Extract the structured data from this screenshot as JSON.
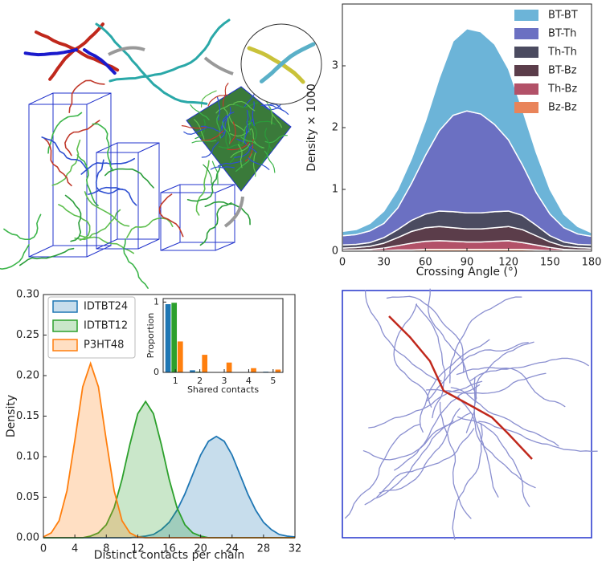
{
  "chart_data": [
    {
      "type": "stackedarea",
      "xlabel": "Crossing Angle (°)",
      "ylabel": "Density × 1000",
      "x": [
        0,
        10,
        20,
        30,
        40,
        50,
        60,
        70,
        80,
        90,
        100,
        110,
        120,
        130,
        140,
        150,
        160,
        170,
        180
      ],
      "xlim": [
        0,
        180
      ],
      "xticks": [
        0,
        30,
        60,
        90,
        120,
        150,
        180
      ],
      "ylim": [
        0,
        4
      ],
      "yticks": [
        0,
        1,
        2,
        3
      ],
      "legend": "upper right",
      "series": [
        {
          "name": "BT-BT",
          "color": "#6cb4d8",
          "values": [
            0.07,
            0.08,
            0.12,
            0.2,
            0.3,
            0.4,
            0.55,
            0.85,
            1.2,
            1.33,
            1.33,
            1.3,
            1.15,
            0.9,
            0.65,
            0.4,
            0.22,
            0.12,
            0.06
          ]
        },
        {
          "name": "BT-Th",
          "color": "#6b70c2",
          "values": [
            0.15,
            0.16,
            0.19,
            0.23,
            0.35,
            0.6,
            0.95,
            1.3,
            1.56,
            1.65,
            1.6,
            1.41,
            1.15,
            0.82,
            0.53,
            0.35,
            0.23,
            0.17,
            0.14
          ]
        },
        {
          "name": "Th-Th",
          "color": "#4b4b60",
          "values": [
            0.05,
            0.05,
            0.06,
            0.09,
            0.13,
            0.18,
            0.22,
            0.25,
            0.26,
            0.26,
            0.26,
            0.26,
            0.25,
            0.23,
            0.17,
            0.1,
            0.07,
            0.05,
            0.05
          ]
        },
        {
          "name": "BT-Bz",
          "color": "#5b3d4a",
          "values": [
            0.03,
            0.04,
            0.05,
            0.08,
            0.13,
            0.19,
            0.22,
            0.23,
            0.22,
            0.21,
            0.21,
            0.22,
            0.23,
            0.21,
            0.15,
            0.09,
            0.05,
            0.04,
            0.03
          ]
        },
        {
          "name": "Th-Bz",
          "color": "#b25168",
          "values": [
            0.02,
            0.02,
            0.02,
            0.04,
            0.07,
            0.11,
            0.13,
            0.14,
            0.13,
            0.12,
            0.12,
            0.13,
            0.14,
            0.11,
            0.08,
            0.05,
            0.02,
            0.02,
            0.02
          ]
        },
        {
          "name": "Bz-Bz",
          "color": "#e9845a",
          "values": [
            0,
            0,
            0.01,
            0.01,
            0.02,
            0.02,
            0.03,
            0.03,
            0.03,
            0.03,
            0.03,
            0.03,
            0.03,
            0.03,
            0.02,
            0.01,
            0.01,
            0,
            0
          ]
        }
      ]
    },
    {
      "type": "density",
      "xlabel": "Distinct contacts per chain",
      "ylabel": "Density",
      "x": [
        0,
        1,
        2,
        3,
        4,
        5,
        6,
        7,
        8,
        9,
        10,
        11,
        12,
        13,
        14,
        15,
        16,
        17,
        18,
        19,
        20,
        21,
        22,
        23,
        24,
        25,
        26,
        27,
        28,
        29,
        30,
        31,
        32
      ],
      "xlim": [
        0,
        32
      ],
      "xticks": [
        0,
        4,
        8,
        12,
        16,
        20,
        24,
        28,
        32
      ],
      "ylim": [
        0,
        0.3
      ],
      "yticks": [
        {
          "value": 0,
          "label": "0.00"
        },
        {
          "value": 0.05,
          "label": "0.05"
        },
        {
          "value": 0.1,
          "label": "0.10"
        },
        {
          "value": 0.15,
          "label": "0.15"
        },
        {
          "value": 0.2,
          "label": "0.20"
        },
        {
          "value": 0.25,
          "label": "0.25"
        },
        {
          "value": 0.3,
          "label": "0.30"
        }
      ],
      "legend": "upper left",
      "series": [
        {
          "name": "IDTBT24",
          "color": "#1f77b4",
          "values": [
            0,
            0,
            0,
            0,
            0,
            0,
            0,
            0,
            0,
            0,
            0,
            0,
            0.001,
            0.002,
            0.004,
            0.01,
            0.019,
            0.034,
            0.054,
            0.078,
            0.102,
            0.119,
            0.125,
            0.119,
            0.102,
            0.078,
            0.054,
            0.034,
            0.019,
            0.01,
            0.004,
            0.002,
            0.001
          ]
        },
        {
          "name": "IDTBT12",
          "color": "#2ca02c",
          "values": [
            0,
            0,
            0,
            0,
            0,
            0,
            0.002,
            0.006,
            0.016,
            0.037,
            0.072,
            0.115,
            0.153,
            0.168,
            0.153,
            0.115,
            0.072,
            0.037,
            0.016,
            0.006,
            0.002,
            0,
            0,
            0,
            0,
            0,
            0,
            0,
            0,
            0,
            0,
            0,
            0
          ]
        },
        {
          "name": "P3HT48",
          "color": "#ff7f0e",
          "values": [
            0.001,
            0.006,
            0.021,
            0.058,
            0.12,
            0.186,
            0.215,
            0.186,
            0.12,
            0.058,
            0.021,
            0.006,
            0.001,
            0,
            0,
            0,
            0,
            0,
            0,
            0,
            0,
            0,
            0,
            0,
            0,
            0,
            0,
            0,
            0,
            0,
            0,
            0,
            0
          ]
        }
      ]
    },
    {
      "type": "bar",
      "xlabel": "Shared contacts",
      "ylabel": "Proportion",
      "x": [
        1,
        2,
        3,
        4,
        5
      ],
      "xlim": [
        0.5,
        5.4
      ],
      "xticks": [
        1,
        2,
        3,
        4,
        5
      ],
      "ylim": [
        0,
        1.05
      ],
      "yticks": [
        0,
        1
      ],
      "series": [
        {
          "name": "IDTBT24",
          "color": "#1f77b4",
          "values": [
            0.97,
            0.03,
            0,
            0,
            0.01
          ]
        },
        {
          "name": "IDTBT12",
          "color": "#2ca02c",
          "values": [
            0.99,
            0.01,
            0,
            0,
            0
          ]
        },
        {
          "name": "P3HT48",
          "color": "#ff7f0e",
          "values": [
            0.44,
            0.25,
            0.14,
            0.06,
            0.04
          ]
        }
      ]
    }
  ]
}
